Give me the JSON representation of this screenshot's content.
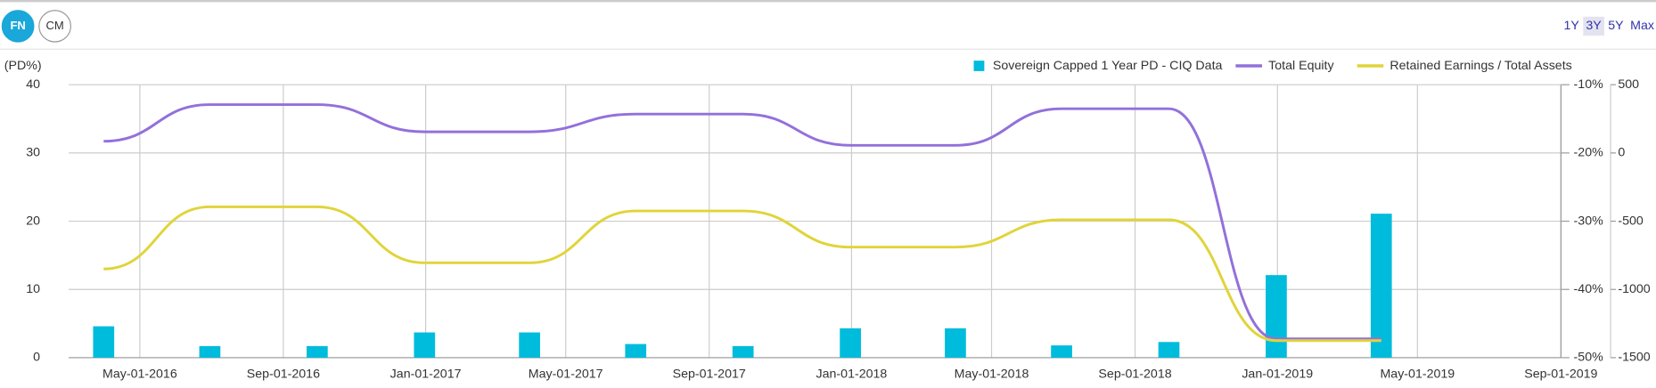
{
  "ui": {
    "tabs": [
      "FN",
      "CM"
    ],
    "active_tab": "FN",
    "ranges": [
      "1Y",
      "3Y",
      "5Y",
      "Max"
    ],
    "active_range": "3Y"
  },
  "chart_data": {
    "type": "bar-line",
    "y_label": "(PD%)",
    "x": [
      "2016-03-31",
      "2016-06-30",
      "2016-09-30",
      "2016-12-31",
      "2017-03-31",
      "2017-06-30",
      "2017-09-30",
      "2017-12-31",
      "2018-03-31",
      "2018-06-30",
      "2018-09-30",
      "2018-12-31",
      "2019-03-31"
    ],
    "xlim": [
      "2016-03-01",
      "2019-09-01"
    ],
    "xticks": [
      {
        "value": "2016-05-01",
        "label": "May-01-2016"
      },
      {
        "value": "2016-09-01",
        "label": "Sep-01-2016"
      },
      {
        "value": "2017-01-01",
        "label": "Jan-01-2017"
      },
      {
        "value": "2017-05-01",
        "label": "May-01-2017"
      },
      {
        "value": "2017-09-01",
        "label": "Sep-01-2017"
      },
      {
        "value": "2018-01-01",
        "label": "Jan-01-2018"
      },
      {
        "value": "2018-05-01",
        "label": "May-01-2018"
      },
      {
        "value": "2018-09-01",
        "label": "Sep-01-2018"
      },
      {
        "value": "2019-01-01",
        "label": "Jan-01-2019"
      },
      {
        "value": "2019-05-01",
        "label": "May-01-2019"
      },
      {
        "value": "2019-09-01",
        "label": "Sep-01-2019"
      }
    ],
    "ylim": [
      0,
      40
    ],
    "yticks": [
      0,
      10,
      20,
      30,
      40
    ],
    "y2lim": [
      -50,
      -10
    ],
    "y2ticks": [
      {
        "value": -10,
        "label": "-10%"
      },
      {
        "value": -20,
        "label": "-20%"
      },
      {
        "value": -30,
        "label": "-30%"
      },
      {
        "value": -40,
        "label": "-40%"
      },
      {
        "value": -50,
        "label": "-50%"
      }
    ],
    "y3lim": [
      -1500,
      500
    ],
    "y3ticks": [
      500,
      0,
      -500,
      -1000,
      -1500
    ],
    "grid": true,
    "series": [
      {
        "name": "Sovereign Capped 1 Year PD - CIQ Data",
        "type": "bar",
        "color": "#00bcdc",
        "values": [
          4.6,
          1.7,
          1.7,
          3.7,
          3.7,
          2.0,
          1.7,
          4.3,
          4.3,
          1.8,
          2.3,
          12.1,
          21.1
        ]
      },
      {
        "name": "Total Equity",
        "type": "line",
        "axis": "y3",
        "color": "#9370db",
        "values": [
          86,
          354,
          354,
          155,
          155,
          285,
          285,
          56,
          56,
          324,
          324,
          -1362,
          -1362
        ]
      },
      {
        "name": "Retained Earnings / Total Assets",
        "type": "line",
        "axis": "y2",
        "color": "#e0d43a",
        "values": [
          -37.0,
          -27.9,
          -27.9,
          -36.1,
          -36.1,
          -28.5,
          -28.5,
          -33.8,
          -33.8,
          -29.8,
          -29.8,
          -47.5,
          -47.5
        ]
      }
    ]
  }
}
